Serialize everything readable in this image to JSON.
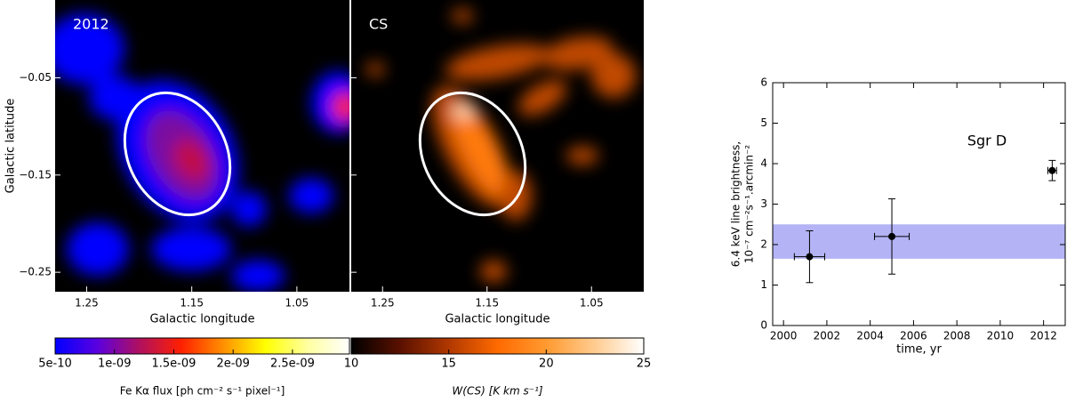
{
  "chart_data": [
    {
      "type": "image",
      "label": "2012",
      "xlabel": "Galactic longitude",
      "ylabel": "Galactic latitude",
      "xlim": [
        1.28,
        1.0
      ],
      "ylim": [
        -0.27,
        0.03
      ],
      "xticks": [
        1.25,
        1.15,
        1.05
      ],
      "yticks": [
        {
          "value": -0.05,
          "label": "−0.05"
        },
        {
          "value": -0.15,
          "label": "−0.15"
        },
        {
          "value": -0.25,
          "label": "−0.25"
        }
      ],
      "colorbar": {
        "label": "Fe Kα flux [ph cm⁻² s⁻¹ pixel⁻¹]",
        "lim": [
          5e-10,
          2.98e-09
        ],
        "ticks": [
          {
            "value": 5e-10,
            "label": "5e-10"
          },
          {
            "value": 1e-09,
            "label": "1e-09"
          },
          {
            "value": 1.5e-09,
            "label": "1.5e-09"
          },
          {
            "value": 2e-09,
            "label": "2e-09"
          },
          {
            "value": 2.5e-09,
            "label": "2.5e-09"
          }
        ],
        "colors": [
          "#0000ff",
          "#5a00e0",
          "#b01060",
          "#ff2000",
          "#ff9000",
          "#ffff00",
          "#ffffa0",
          "#ffffff"
        ]
      }
    },
    {
      "type": "image",
      "label": "CS",
      "xlabel": "Galactic longitude",
      "xlim": [
        1.28,
        1.0
      ],
      "ylim": [
        -0.27,
        0.03
      ],
      "xticks": [
        1.25,
        1.15,
        1.05
      ],
      "yticks": [
        -0.05,
        -0.15,
        -0.25
      ],
      "colorbar": {
        "label": "W(CS) [K km s⁻¹]",
        "lim": [
          10,
          25
        ],
        "ticks": [
          10,
          15,
          20,
          25
        ],
        "colors": [
          "#000000",
          "#5a1000",
          "#b03800",
          "#ff6a00",
          "#ff9a30",
          "#ffcc90",
          "#ffffff"
        ]
      }
    },
    {
      "type": "scatter",
      "annotation": "Sgr D",
      "xlabel": "time, yr",
      "ylabel": [
        "6.4 keV line brightness,",
        "10⁻⁷ cm⁻²s⁻¹.arcmin⁻²"
      ],
      "x": [
        2001.2,
        2005,
        2012.4
      ],
      "xerr": [
        0.7,
        0.8,
        0.2
      ],
      "y": [
        1.7,
        2.2,
        3.83
      ],
      "yerr": [
        0.64,
        0.93,
        0.25
      ],
      "color": "#000000",
      "band": [
        1.65,
        2.5
      ],
      "band_color": "#b3b3f5",
      "xlim": [
        1999.5,
        2013
      ],
      "ylim": [
        0,
        6
      ],
      "xticks": [
        2000,
        2002,
        2004,
        2006,
        2008,
        2010,
        2012
      ],
      "yticks": [
        0,
        1,
        2,
        3,
        4,
        5,
        6
      ]
    }
  ]
}
